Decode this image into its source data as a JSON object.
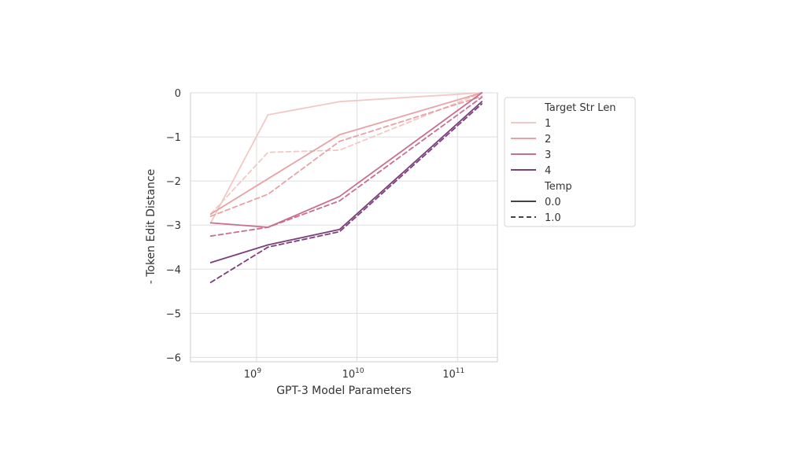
{
  "chart_data": {
    "type": "line",
    "xlabel": "GPT-3 Model Parameters",
    "ylabel": "- Token Edit Distance",
    "xscale": "log",
    "x_ticks": [
      {
        "base": "10",
        "exp": "9",
        "value": 1000000000
      },
      {
        "base": "10",
        "exp": "10",
        "value": 10000000000
      },
      {
        "base": "10",
        "exp": "11",
        "value": 100000000000
      }
    ],
    "y_ticks": [
      "0",
      "−1",
      "−2",
      "−3",
      "−4",
      "−5",
      "−6"
    ],
    "xlim": [
      220000000,
      250000000000
    ],
    "ylim": [
      -6.1,
      0
    ],
    "x": [
      350000000,
      1300000000,
      6700000000,
      175000000000
    ],
    "grid": true,
    "legend_position": "right",
    "legend": {
      "hue_title": "Target Str Len",
      "hue_entries": [
        {
          "label": "1",
          "color": "#f2c8c5"
        },
        {
          "label": "2",
          "color": "#e8a2a5"
        },
        {
          "label": "3",
          "color": "#c96e8e"
        },
        {
          "label": "4",
          "color": "#7b3f7c"
        }
      ],
      "style_title": "Temp",
      "style_entries": [
        {
          "label": "0.0",
          "dash": "solid"
        },
        {
          "label": "1.0",
          "dash": "dashed"
        }
      ]
    },
    "series": [
      {
        "name": "1",
        "temp": "0.0",
        "color": "#f2c8c5",
        "values": [
          -2.95,
          -0.5,
          -0.2,
          0.0
        ]
      },
      {
        "name": "1",
        "temp": "1.0",
        "color": "#f2c8c5",
        "values": [
          -2.75,
          -1.35,
          -1.3,
          0.0
        ]
      },
      {
        "name": "2",
        "temp": "0.0",
        "color": "#e8a2a5",
        "values": [
          -2.75,
          -1.95,
          -0.95,
          0.0
        ]
      },
      {
        "name": "2",
        "temp": "1.0",
        "color": "#e8a2a5",
        "values": [
          -2.8,
          -2.3,
          -1.1,
          -0.08
        ]
      },
      {
        "name": "3",
        "temp": "0.0",
        "color": "#c96e8e",
        "values": [
          -2.95,
          -3.05,
          -2.35,
          0.0
        ]
      },
      {
        "name": "3",
        "temp": "1.0",
        "color": "#c96e8e",
        "values": [
          -3.25,
          -3.05,
          -2.45,
          -0.1
        ]
      },
      {
        "name": "4",
        "temp": "0.0",
        "color": "#7b3f7c",
        "values": [
          -3.85,
          -3.45,
          -3.1,
          -0.2
        ]
      },
      {
        "name": "4",
        "temp": "1.0",
        "color": "#7b3f7c",
        "values": [
          -4.3,
          -3.5,
          -3.15,
          -0.25
        ]
      }
    ]
  }
}
